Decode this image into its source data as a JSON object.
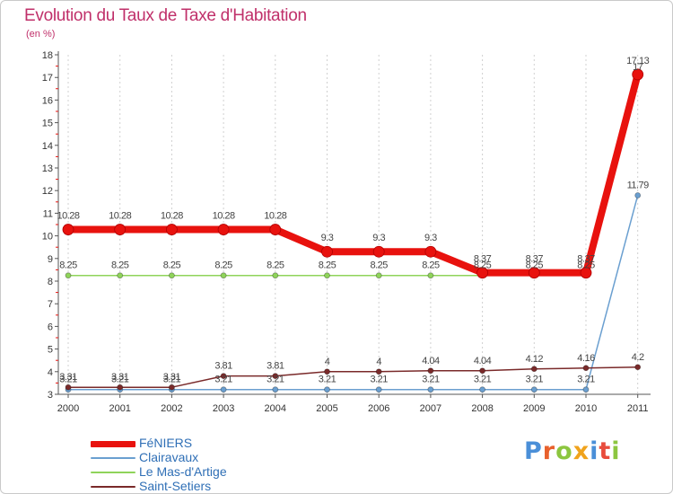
{
  "chart_data": {
    "type": "line",
    "title": "Evolution du Taux de Taxe d'Habitation",
    "unit_label": "(en %)",
    "x": [
      "2000",
      "2001",
      "2002",
      "2003",
      "2004",
      "2005",
      "2006",
      "2007",
      "2008",
      "2009",
      "2010",
      "2011"
    ],
    "ylim": [
      3,
      18
    ],
    "yticks": [
      3,
      4,
      5,
      6,
      7,
      8,
      9,
      10,
      11,
      12,
      13,
      14,
      15,
      16,
      17,
      18
    ],
    "grid": "vertical dashed",
    "legend_position": "bottom-left",
    "series": [
      {
        "name": "FéNIERS",
        "color": "#e8120e",
        "values": [
          10.28,
          10.28,
          10.28,
          10.28,
          10.28,
          9.3,
          9.3,
          9.3,
          8.37,
          8.37,
          8.37,
          17.13
        ],
        "labels": [
          "10.28",
          "10.28",
          "10.28",
          "10.28",
          "10.28",
          "9.3",
          "9.3",
          "9.3",
          "8.37",
          "8.37",
          "8.37",
          "17.13"
        ]
      },
      {
        "name": "Clairavaux",
        "color": "#6a9fd0",
        "values": [
          3.21,
          3.21,
          3.21,
          3.21,
          3.21,
          3.21,
          3.21,
          3.21,
          3.21,
          3.21,
          3.21,
          11.79
        ],
        "labels": [
          "3.21",
          "3.21",
          "3.21",
          "3.21",
          "3.21",
          "3.21",
          "3.21",
          "3.21",
          "3.21",
          "3.21",
          "3.21",
          "11.79"
        ]
      },
      {
        "name": "Le Mas-d'Artige",
        "color": "#8fd45a",
        "values": [
          8.25,
          8.25,
          8.25,
          8.25,
          8.25,
          8.25,
          8.25,
          8.25,
          8.25,
          8.25,
          8.25,
          17
        ],
        "labels": [
          "8.25",
          "8.25",
          "8.25",
          "8.25",
          "8.25",
          "8.25",
          "8.25",
          "8.25",
          "8.25",
          "8.25",
          "8.25",
          "17"
        ]
      },
      {
        "name": "Saint-Setiers",
        "color": "#7a2a2a",
        "values": [
          3.31,
          3.31,
          3.31,
          3.81,
          3.81,
          4,
          4,
          4.04,
          4.04,
          4.12,
          4.16,
          4.2
        ],
        "labels": [
          "3.31",
          "3.31",
          "3.31",
          "3.81",
          "3.81",
          "4",
          "4",
          "4.04",
          "4.04",
          "4.12",
          "4.16",
          "4.2"
        ]
      }
    ]
  },
  "logo": {
    "text": "Proxiti",
    "colors": [
      "#4a8fd8",
      "#e8602c",
      "#8cc63f",
      "#f0a31c",
      "#4a8fd8",
      "#e84c3d",
      "#8cc63f"
    ]
  }
}
